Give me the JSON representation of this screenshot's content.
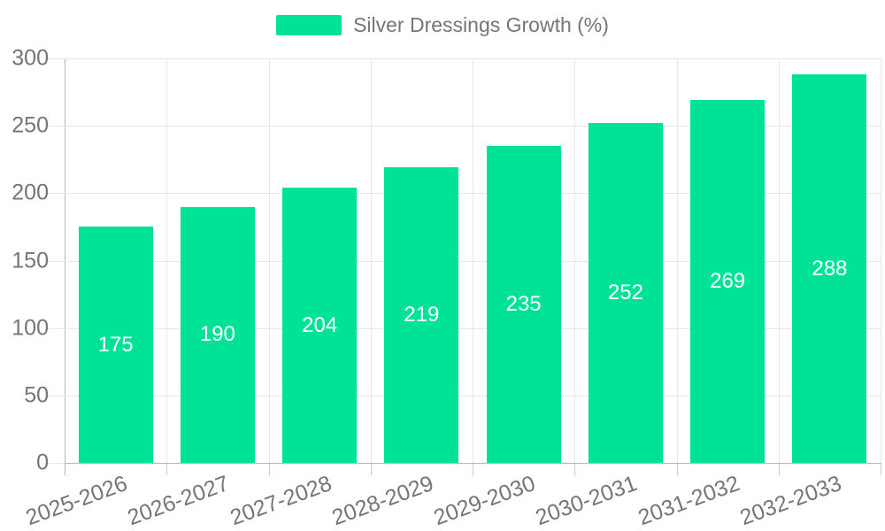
{
  "chart_data": {
    "type": "bar",
    "title": "Silver Dressings Growth (%)",
    "categories": [
      "2025-2026",
      "2026-2027",
      "2027-2028",
      "2028-2029",
      "2029-2030",
      "2030-2031",
      "2031-2032",
      "2032-2033"
    ],
    "values": [
      175,
      190,
      204,
      219,
      235,
      252,
      269,
      288
    ],
    "xlabel": "",
    "ylabel": "",
    "ylim": [
      0,
      300
    ],
    "ytick_step": 50,
    "y_tick_labels": [
      "0",
      "50",
      "100",
      "150",
      "200",
      "250",
      "300"
    ],
    "legend_position": "top",
    "grid": "on",
    "data_labels": "inside-center",
    "colors": {
      "bar": "#00E396",
      "grid_line": "#e7e7e7",
      "axis_line": "#b6b6b6",
      "x_tick_mark": "#c9c9c9",
      "tick_text": "#757575",
      "value_label_text": "#ffffff",
      "background": "#ffffff"
    }
  }
}
